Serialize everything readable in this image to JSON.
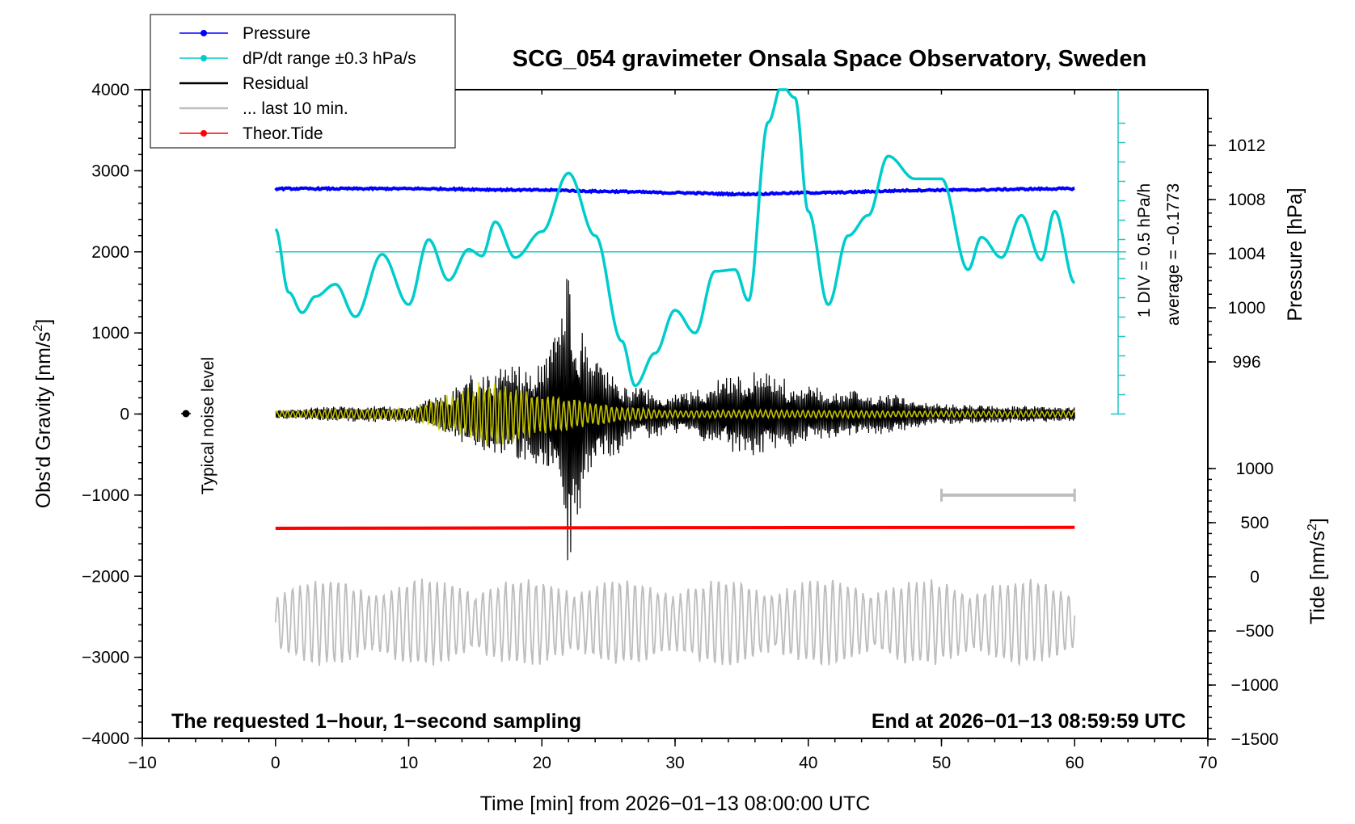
{
  "chart_data": {
    "type": "line",
    "title": "SCG_054 gravimeter Onsala Space Observatory, Sweden",
    "xlabel": "Time [min] from 2026−01−13 08:00:00 UTC",
    "ylabel_left": "Obs'd Gravity [nm/s",
    "ylabel_left_sup": "2",
    "ylabel_left_end": "]",
    "ylabel_right_pressure": "Pressure [hPa]",
    "ylabel_right_tide": "Tide [nm/s",
    "ylabel_right_tide_sup": "2",
    "ylabel_right_tide_end": "]",
    "xlim": [
      -10,
      70
    ],
    "ylim": [
      -4000,
      4000
    ],
    "x_ticks": [
      "−10",
      "0",
      "10",
      "20",
      "30",
      "40",
      "50",
      "60",
      "70"
    ],
    "y_ticks": [
      "−4000",
      "−3000",
      "−2000",
      "−1000",
      "0",
      "1000",
      "2000",
      "3000",
      "4000"
    ],
    "pressure_ticks": [
      "996",
      "1000",
      "1004",
      "1008",
      "1012"
    ],
    "tide_ticks": [
      "−1500",
      "−1000",
      "−500",
      "0",
      "500",
      "1000"
    ],
    "legend": [
      {
        "label": "Pressure",
        "color": "#0000ff",
        "marker": true
      },
      {
        "label": "dP/dt range ±0.3 hPa/s",
        "color": "#00cccc",
        "marker": true
      },
      {
        "label": "Residual",
        "color": "#000000",
        "marker": false
      },
      {
        "label": "... last 10 min.",
        "color": "#bdbdbd",
        "marker": false
      },
      {
        "label": "Theor.Tide",
        "color": "#ff0000",
        "marker": true
      }
    ],
    "legend_position": "top-left",
    "notes": {
      "bottom_left": "The requested 1−hour, 1−second sampling",
      "bottom_right": "End at 2026−01−13 08:59:59 UTC",
      "noise": "Typical noise level",
      "scale_1": "1 DIV = 0.5 hPa/h",
      "scale_2": "average = −0.1773"
    },
    "series": [
      {
        "name": "Pressure",
        "color": "#0000ff",
        "unit": "hPa",
        "x": [
          0,
          10,
          20,
          25,
          30,
          35,
          40,
          50,
          60
        ],
        "values": [
          1008.8,
          1008.8,
          1008.7,
          1008.6,
          1008.5,
          1008.4,
          1008.5,
          1008.7,
          1008.8
        ]
      },
      {
        "name": "dP/dt range ±0.3 hPa/s",
        "color": "#00cccc",
        "unit": "nm/s2 plot units",
        "x": [
          0,
          1,
          2,
          3,
          4.5,
          6,
          8,
          10,
          11.5,
          13,
          14.5,
          15.5,
          16.5,
          18,
          20,
          22,
          24,
          26,
          27,
          28.5,
          30,
          31.5,
          33,
          34.5,
          35.5,
          37,
          38,
          39,
          40,
          41.5,
          43,
          44.5,
          46,
          48,
          50,
          52,
          53,
          54.5,
          56,
          57.5,
          58.5,
          60
        ],
        "values": [
          2280,
          1500,
          1250,
          1450,
          1600,
          1200,
          1970,
          1350,
          2150,
          1650,
          2030,
          1950,
          2370,
          1930,
          2250,
          2970,
          2200,
          900,
          350,
          750,
          1280,
          1000,
          1760,
          1780,
          1400,
          3600,
          4050,
          3900,
          2500,
          1350,
          2200,
          2450,
          3180,
          2900,
          2900,
          1780,
          2180,
          1930,
          2450,
          1900,
          2500,
          1620
        ]
      },
      {
        "name": "Residual",
        "color": "#000000",
        "unit": "nm/s2",
        "x": [
          0,
          5,
          10,
          13,
          15,
          17,
          19,
          20.5,
          21.5,
          22,
          22.5,
          23.5,
          25,
          27,
          30,
          35,
          36,
          38,
          40,
          45,
          50,
          55,
          60
        ],
        "values": [
          60,
          100,
          100,
          300,
          500,
          650,
          600,
          800,
          1350,
          1900,
          1300,
          900,
          600,
          330,
          250,
          500,
          550,
          450,
          350,
          280,
          130,
          110,
          100
        ]
      },
      {
        "name": "Theor.Tide",
        "color": "#ff0000",
        "unit": "nm/s2",
        "x": [
          0,
          10,
          20,
          30,
          40,
          50,
          60
        ],
        "values": [
          -1410,
          -1407,
          -1404,
          -1401,
          -1400,
          -1399,
          -1398
        ]
      },
      {
        "name": "... last 10 min.",
        "color": "#bdbdbd",
        "unit": "nm/s2",
        "x": [
          0,
          60
        ],
        "values": [
          -2570,
          -2570
        ]
      }
    ]
  }
}
